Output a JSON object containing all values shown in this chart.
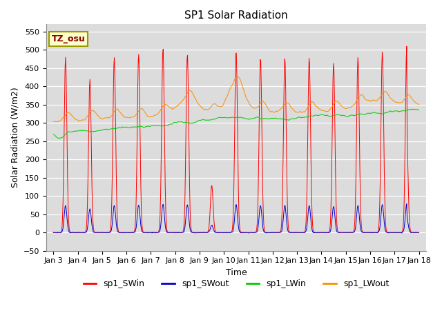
{
  "title": "SP1 Solar Radiation",
  "xlabel": "Time",
  "ylabel": "Solar Radiation (W/m2)",
  "ylim": [
    -50,
    570
  ],
  "annotation_text": "TZ_osu",
  "annotation_color": "#8B0000",
  "annotation_bg": "#FFFFCC",
  "annotation_border": "#999900",
  "series_colors": {
    "SWin": "#FF0000",
    "SWout": "#0000CC",
    "LWin": "#00CC00",
    "LWout": "#FF8C00"
  },
  "legend_labels": [
    "sp1_SWin",
    "sp1_SWout",
    "sp1_LWin",
    "sp1_LWout"
  ],
  "bg_color": "#DCDCDC",
  "grid_color": "white",
  "tick_label_dates": [
    "Jan 3",
    "Jan 4",
    "Jan 5",
    "Jan 6",
    "Jan 7",
    "Jan 8",
    "Jan 9",
    "Jan 10",
    "Jan 11",
    "Jan 12",
    "Jan 13",
    "Jan 14",
    "Jan 15",
    "Jan 16",
    "Jan 17",
    "Jan 18"
  ]
}
